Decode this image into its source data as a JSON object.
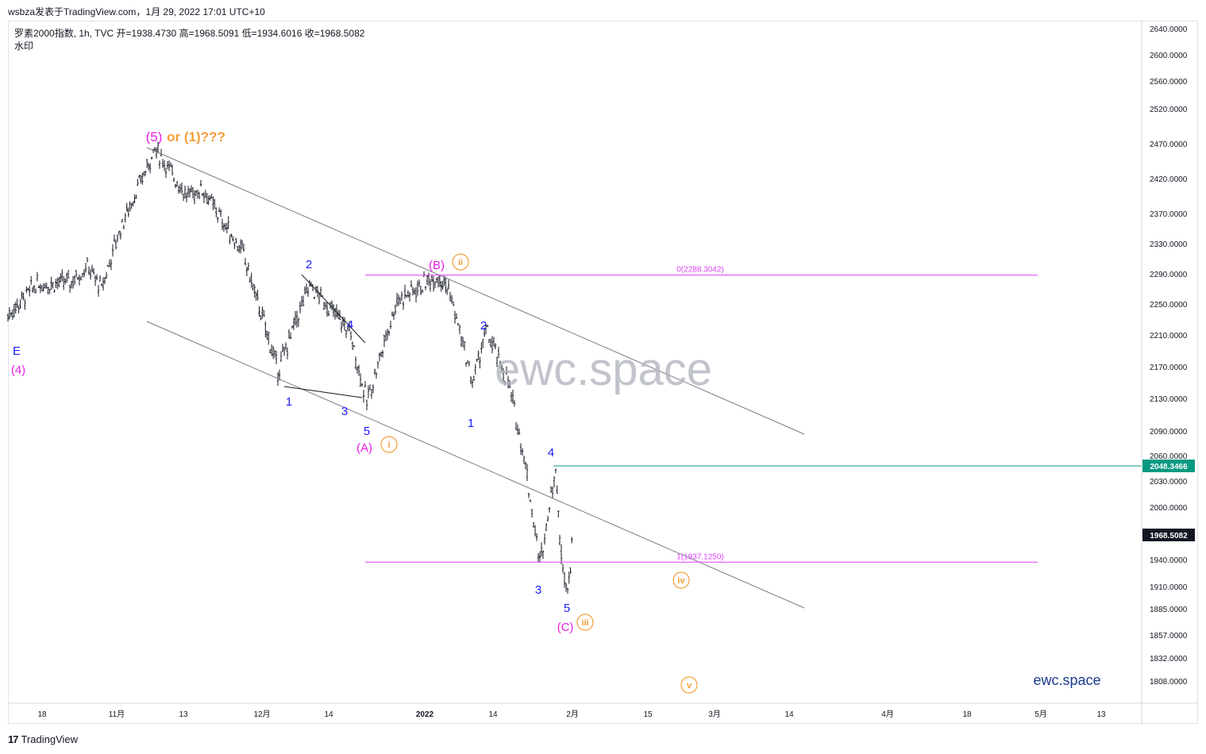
{
  "header": {
    "text": "wsbza发表于TradingView.com，1月 29, 2022 17:01 UTC+10"
  },
  "legend": {
    "line1": "罗素2000指数, 1h, TVC  开=1938.4730  高=1968.5091  低=1934.6016  收=1968.5082",
    "line2": "水印"
  },
  "footer": {
    "logo_mark": "17",
    "brand": "TradingView"
  },
  "colors": {
    "candle": "#131722",
    "grid": "#f0f3fa",
    "channel": "#787b86",
    "fib": "#e040fb",
    "blue_label": "#1a1aff",
    "magenta_label": "#e91ee8",
    "orange_label": "#f29e38",
    "level_line": "#089981",
    "watermark": "#b2b5be"
  },
  "chart_data": {
    "type": "candlestick",
    "instrument": "罗素2000指数",
    "timeframe": "1h",
    "price_axis_ticks": [
      "2640.0000",
      "2600.0000",
      "2560.0000",
      "2520.0000",
      "2470.0000",
      "2420.0000",
      "2370.0000",
      "2330.0000",
      "2290.0000",
      "2250.0000",
      "2210.0000",
      "2170.0000",
      "2130.0000",
      "2090.0000",
      "2060.0000",
      "2030.0000",
      "2000.0000",
      "1940.0000",
      "1910.0000",
      "1885.0000",
      "1857.0000",
      "1832.0000",
      "1808.0000"
    ],
    "time_axis_ticks": [
      "18",
      "11月",
      "13",
      "12月",
      "14",
      "2022",
      "14",
      "2月",
      "15",
      "3月",
      "14",
      "4月",
      "18",
      "5月",
      "13"
    ],
    "price_marker_level": "2048.3466",
    "price_marker_last": "1968.5082",
    "fib_levels": [
      {
        "label": "0(2288.3042)",
        "price": 2288.3042
      },
      {
        "label": "1(1937.1250)",
        "price": 1937.125
      }
    ],
    "price_path": [
      [
        "e",
        2235
      ],
      [
        "e",
        2275
      ],
      [
        "e",
        2280
      ],
      [
        "e",
        2300
      ],
      [
        "e",
        2270
      ],
      [
        "e",
        2340
      ],
      [
        "p",
        2462
      ],
      [
        "e",
        2430
      ],
      [
        "e",
        2395
      ],
      [
        "e",
        2405
      ],
      [
        "e",
        2360
      ],
      [
        "e",
        2320
      ],
      [
        "3",
        2165
      ],
      [
        "2",
        2275
      ],
      [
        "4",
        2215
      ],
      [
        "5",
        2125
      ],
      [
        "e",
        2255
      ],
      [
        "B",
        2288
      ],
      [
        "e",
        2270
      ],
      [
        "1",
        2150
      ],
      [
        "2",
        2215
      ],
      [
        "e",
        2150
      ],
      [
        "e",
        2060
      ],
      [
        "3",
        1935
      ],
      [
        "4",
        2048
      ],
      [
        "e",
        1960
      ],
      [
        "5",
        1905
      ],
      [
        "e",
        1968
      ]
    ],
    "wave_labels": [
      {
        "text": "E",
        "color": "blue"
      },
      {
        "text": "(4)",
        "color": "magenta"
      },
      {
        "text": "(5)",
        "color": "magenta"
      },
      {
        "text": "or (1)???",
        "color": "orange"
      },
      {
        "text": "2",
        "color": "blue"
      },
      {
        "text": "4",
        "color": "blue"
      },
      {
        "text": "1",
        "color": "blue"
      },
      {
        "text": "3",
        "color": "blue"
      },
      {
        "text": "5",
        "color": "blue"
      },
      {
        "text": "(A)",
        "color": "magenta"
      },
      {
        "text": "i",
        "color": "orange",
        "circled": true
      },
      {
        "text": "(B)",
        "color": "magenta"
      },
      {
        "text": "ii",
        "color": "orange",
        "circled": true
      },
      {
        "text": "2",
        "color": "blue"
      },
      {
        "text": "1",
        "color": "blue"
      },
      {
        "text": "4",
        "color": "blue"
      },
      {
        "text": "3",
        "color": "blue"
      },
      {
        "text": "5",
        "color": "blue"
      },
      {
        "text": "(C)",
        "color": "magenta"
      },
      {
        "text": "iii",
        "color": "orange",
        "circled": true
      },
      {
        "text": "iv",
        "color": "orange",
        "circled": true
      },
      {
        "text": "v",
        "color": "orange",
        "circled": true
      }
    ],
    "watermark": "ewc.space",
    "brand_corner": "ewc.space"
  }
}
